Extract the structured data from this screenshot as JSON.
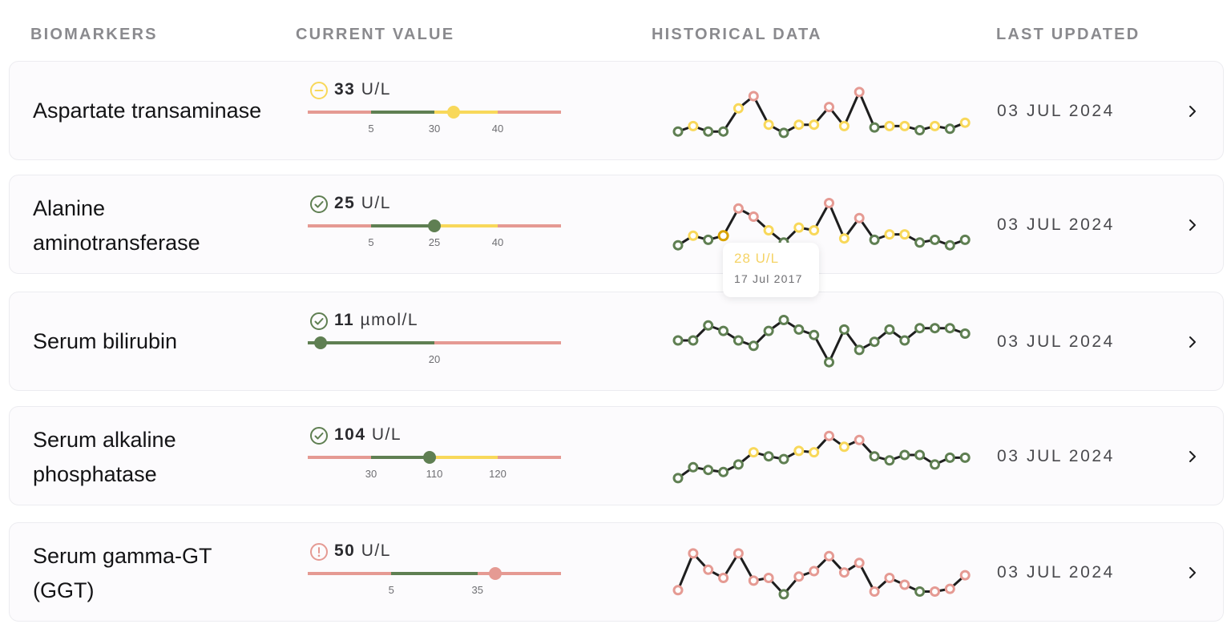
{
  "header": {
    "col_biomarkers": "BIOMARKERS",
    "col_current": "CURRENT VALUE",
    "col_history": "HISTORICAL DATA",
    "col_updated": "LAST UPDATED"
  },
  "colors": {
    "red": "#e59a93",
    "green": "#5f7f52",
    "yellow": "#f8d85a",
    "line": "#1e1e1e"
  },
  "tooltip": {
    "value": "28 U/L",
    "date": "17 Jul 2017"
  },
  "rows": [
    {
      "name_lines": [
        "Aspartate transaminase"
      ],
      "status_icon": "minus-circle-icon",
      "status": "yellow",
      "value": "33",
      "unit": "U/L",
      "ticks": [
        "5",
        "30",
        "40"
      ],
      "segments": [
        [
          "red",
          0,
          0.25
        ],
        [
          "green",
          0.25,
          0.5
        ],
        [
          "yellow",
          0.5,
          0.75
        ],
        [
          "red",
          0.75,
          1
        ]
      ],
      "marker_pos": 0.575,
      "updated": "03 JUL 2024",
      "history": [
        {
          "y": 8,
          "s": "green"
        },
        {
          "y": 16,
          "s": "yellow"
        },
        {
          "y": 8,
          "s": "green"
        },
        {
          "y": 8,
          "s": "green"
        },
        {
          "y": 42,
          "s": "yellow"
        },
        {
          "y": 60,
          "s": "red"
        },
        {
          "y": 18,
          "s": "yellow"
        },
        {
          "y": 6,
          "s": "green"
        },
        {
          "y": 18,
          "s": "yellow"
        },
        {
          "y": 18,
          "s": "yellow"
        },
        {
          "y": 44,
          "s": "red"
        },
        {
          "y": 16,
          "s": "yellow"
        },
        {
          "y": 66,
          "s": "red"
        },
        {
          "y": 14,
          "s": "green"
        },
        {
          "y": 16,
          "s": "yellow"
        },
        {
          "y": 16,
          "s": "yellow"
        },
        {
          "y": 10,
          "s": "green"
        },
        {
          "y": 16,
          "s": "yellow"
        },
        {
          "y": 12,
          "s": "green"
        },
        {
          "y": 21,
          "s": "yellow"
        }
      ]
    },
    {
      "name_lines": [
        "Alanine",
        "aminotransferase"
      ],
      "status_icon": "check-circle-icon",
      "status": "green",
      "value": "25",
      "unit": "U/L",
      "ticks": [
        "5",
        "25",
        "40"
      ],
      "segments": [
        [
          "red",
          0,
          0.25
        ],
        [
          "green",
          0.25,
          0.5
        ],
        [
          "yellow",
          0.5,
          0.75
        ],
        [
          "red",
          0.75,
          1
        ]
      ],
      "marker_pos": 0.5,
      "updated": "03 JUL 2024",
      "history": [
        {
          "y": 8,
          "s": "green"
        },
        {
          "y": 22,
          "s": "yellow"
        },
        {
          "y": 16,
          "s": "green"
        },
        {
          "y": 22,
          "s": "yellow",
          "hl": true
        },
        {
          "y": 62,
          "s": "red"
        },
        {
          "y": 50,
          "s": "red"
        },
        {
          "y": 30,
          "s": "yellow"
        },
        {
          "y": 12,
          "s": "green"
        },
        {
          "y": 34,
          "s": "yellow"
        },
        {
          "y": 30,
          "s": "yellow"
        },
        {
          "y": 70,
          "s": "red"
        },
        {
          "y": 18,
          "s": "yellow"
        },
        {
          "y": 48,
          "s": "red"
        },
        {
          "y": 16,
          "s": "green"
        },
        {
          "y": 24,
          "s": "yellow"
        },
        {
          "y": 24,
          "s": "yellow"
        },
        {
          "y": 12,
          "s": "green"
        },
        {
          "y": 16,
          "s": "green"
        },
        {
          "y": 8,
          "s": "green"
        },
        {
          "y": 16,
          "s": "green"
        }
      ]
    },
    {
      "name_lines": [
        "Serum bilirubin"
      ],
      "status_icon": "check-circle-icon",
      "status": "green",
      "value": "11",
      "unit": "µmol/L",
      "ticks": [
        "20"
      ],
      "segments": [
        [
          "green",
          0,
          0.5
        ],
        [
          "red",
          0.5,
          1
        ]
      ],
      "marker_pos": 0.05,
      "updated": "03 JUL 2024",
      "history": [
        {
          "y": 40,
          "s": "green"
        },
        {
          "y": 40,
          "s": "green"
        },
        {
          "y": 62,
          "s": "green"
        },
        {
          "y": 54,
          "s": "green"
        },
        {
          "y": 40,
          "s": "green"
        },
        {
          "y": 32,
          "s": "green"
        },
        {
          "y": 54,
          "s": "green"
        },
        {
          "y": 70,
          "s": "green"
        },
        {
          "y": 56,
          "s": "green"
        },
        {
          "y": 48,
          "s": "green"
        },
        {
          "y": 8,
          "s": "green"
        },
        {
          "y": 56,
          "s": "green"
        },
        {
          "y": 26,
          "s": "green"
        },
        {
          "y": 38,
          "s": "green"
        },
        {
          "y": 56,
          "s": "green"
        },
        {
          "y": 40,
          "s": "green"
        },
        {
          "y": 58,
          "s": "green"
        },
        {
          "y": 58,
          "s": "green"
        },
        {
          "y": 58,
          "s": "green"
        },
        {
          "y": 50,
          "s": "green"
        }
      ]
    },
    {
      "name_lines": [
        "Serum alkaline",
        "phosphatase"
      ],
      "status_icon": "check-circle-icon",
      "status": "green",
      "value": "104",
      "unit": "U/L",
      "ticks": [
        "30",
        "110",
        "120"
      ],
      "segments": [
        [
          "red",
          0,
          0.25
        ],
        [
          "green",
          0.25,
          0.5
        ],
        [
          "yellow",
          0.5,
          0.75
        ],
        [
          "red",
          0.75,
          1
        ]
      ],
      "marker_pos": 0.48,
      "updated": "03 JUL 2024",
      "history": [
        {
          "y": 6,
          "s": "green"
        },
        {
          "y": 22,
          "s": "green"
        },
        {
          "y": 18,
          "s": "green"
        },
        {
          "y": 15,
          "s": "green"
        },
        {
          "y": 26,
          "s": "green"
        },
        {
          "y": 44,
          "s": "yellow"
        },
        {
          "y": 38,
          "s": "green"
        },
        {
          "y": 34,
          "s": "green"
        },
        {
          "y": 46,
          "s": "yellow"
        },
        {
          "y": 44,
          "s": "yellow"
        },
        {
          "y": 68,
          "s": "red"
        },
        {
          "y": 52,
          "s": "yellow"
        },
        {
          "y": 62,
          "s": "red"
        },
        {
          "y": 38,
          "s": "green"
        },
        {
          "y": 32,
          "s": "green"
        },
        {
          "y": 40,
          "s": "green"
        },
        {
          "y": 40,
          "s": "green"
        },
        {
          "y": 26,
          "s": "green"
        },
        {
          "y": 36,
          "s": "green"
        },
        {
          "y": 36,
          "s": "green"
        }
      ]
    },
    {
      "name_lines": [
        "Serum gamma-GT",
        "(GGT)"
      ],
      "status_icon": "exclamation-circle-icon",
      "status": "red",
      "value": "50",
      "unit": "U/L",
      "ticks": [
        "5",
        "35"
      ],
      "segments": [
        [
          "red",
          0,
          0.33
        ],
        [
          "green",
          0.33,
          0.67
        ],
        [
          "red",
          0.67,
          1
        ]
      ],
      "marker_pos": 0.74,
      "updated": "03 JUL 2024",
      "history": [
        {
          "y": 12,
          "s": "red"
        },
        {
          "y": 66,
          "s": "red"
        },
        {
          "y": 42,
          "s": "red"
        },
        {
          "y": 30,
          "s": "red"
        },
        {
          "y": 66,
          "s": "red"
        },
        {
          "y": 26,
          "s": "red"
        },
        {
          "y": 30,
          "s": "red"
        },
        {
          "y": 6,
          "s": "green"
        },
        {
          "y": 32,
          "s": "red"
        },
        {
          "y": 40,
          "s": "red"
        },
        {
          "y": 62,
          "s": "red"
        },
        {
          "y": 38,
          "s": "red"
        },
        {
          "y": 52,
          "s": "red"
        },
        {
          "y": 10,
          "s": "red"
        },
        {
          "y": 30,
          "s": "red"
        },
        {
          "y": 20,
          "s": "red"
        },
        {
          "y": 10,
          "s": "green"
        },
        {
          "y": 10,
          "s": "red"
        },
        {
          "y": 14,
          "s": "red"
        },
        {
          "y": 34,
          "s": "red"
        }
      ]
    }
  ]
}
